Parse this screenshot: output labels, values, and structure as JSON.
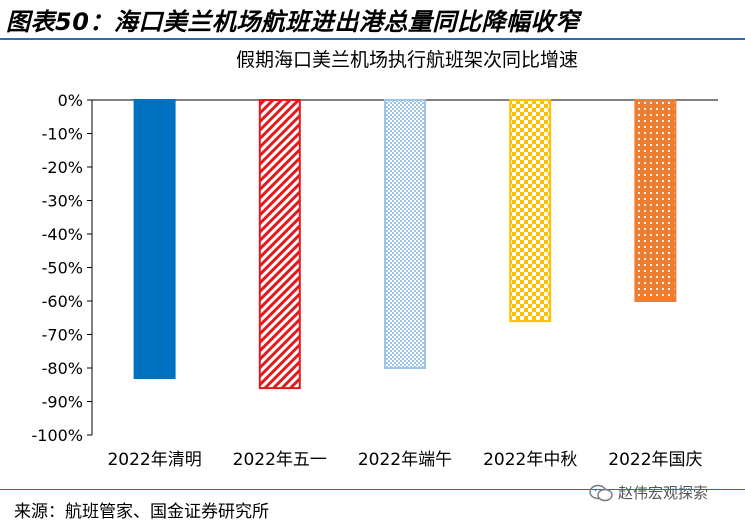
{
  "figure_title": "图表50：海口美兰机场航班进出港总量同比降幅收窄",
  "source": "来源：航班管家、国金证券研究所",
  "watermark": "赵伟宏观探索",
  "chart_data": {
    "type": "bar",
    "title": "假期海口美兰机场执行航班架次同比增速",
    "categories": [
      "2022年清明",
      "2022年五一",
      "2022年端午",
      "2022年中秋",
      "2022年国庆"
    ],
    "values": [
      -83,
      -86,
      -80,
      -66,
      -60
    ],
    "unit": "%",
    "ylim": [
      -100,
      0
    ],
    "yticks": [
      0,
      -10,
      -20,
      -30,
      -40,
      -50,
      -60,
      -70,
      -80,
      -90,
      -100
    ],
    "ytick_labels": [
      "0%",
      "-10%",
      "-20%",
      "-30%",
      "-40%",
      "-50%",
      "-60%",
      "-70%",
      "-80%",
      "-90%",
      "-100%"
    ],
    "grid": false,
    "legend": "none",
    "bar_styles": [
      {
        "fill": "#0070c0",
        "stroke": "#0070c0",
        "pattern": "solid"
      },
      {
        "fill": "#e31a1c",
        "stroke": "#e31a1c",
        "pattern": "diagonal-stripes"
      },
      {
        "fill": "#9dc3e6",
        "stroke": "#9dc3e6",
        "pattern": "checker"
      },
      {
        "fill": "#ffc000",
        "stroke": "#ffc000",
        "pattern": "dots"
      },
      {
        "fill": "#ed7d31",
        "stroke": "#ed7d31",
        "pattern": "small-dots"
      }
    ]
  }
}
